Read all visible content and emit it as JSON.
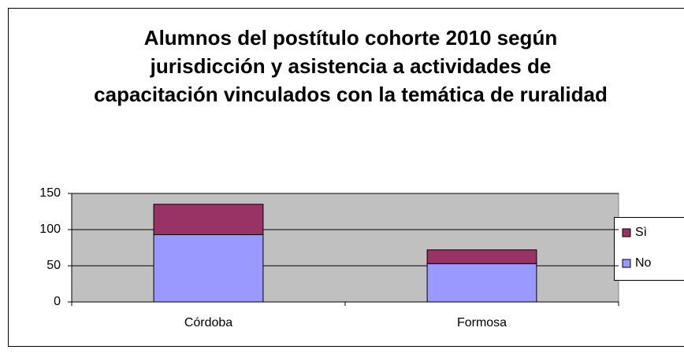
{
  "chart_data": {
    "type": "stacked_bar",
    "title": "Alumnos del postítulo cohorte 2010 según jurisdicción y asistencia a actividades de capacitación vinculados con la temática de ruralidad",
    "categories": [
      "Córdoba",
      "Formosa"
    ],
    "series": [
      {
        "name": "No",
        "color": "#9999ff",
        "values": [
          93,
          53
        ]
      },
      {
        "name": "Sì",
        "color": "#993366",
        "values": [
          42,
          19
        ]
      }
    ],
    "ylim": [
      0,
      150
    ],
    "yticks": [
      0,
      50,
      100,
      150
    ],
    "grid": true,
    "legend": "right"
  }
}
